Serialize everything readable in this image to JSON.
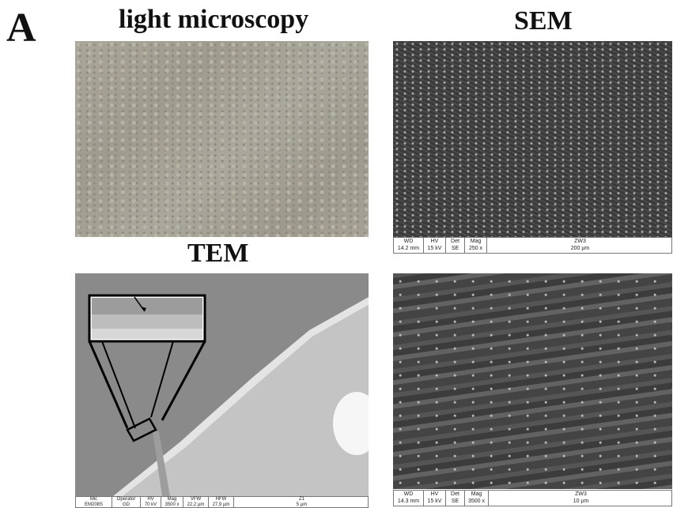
{
  "figure": {
    "panel_label": "A",
    "headings": {
      "light": "light microscopy",
      "sem": "SEM",
      "tem": "TEM"
    }
  },
  "sem_top_bar": {
    "labels": [
      "WD",
      "HV",
      "Det",
      "Mag",
      "ZW3"
    ],
    "values": [
      "14.2 mm",
      "15 kV",
      "SE",
      "250 x",
      "200 µm"
    ]
  },
  "sem_bottom_bar": {
    "labels": [
      "WD",
      "HV",
      "Det",
      "Mag",
      "ZW3"
    ],
    "values": [
      "14.3 mm",
      "15 kV",
      "SE",
      "3500 x",
      "10 µm"
    ]
  },
  "tem_bar": {
    "labels": [
      "Mic",
      "Operator",
      "HV",
      "Mag",
      "VFW",
      "HFW",
      "Z1"
    ],
    "values": [
      "EM208S",
      "GD",
      "70 kV",
      "3500 x",
      "22,2 µm",
      "27,9 µm",
      "5 µm"
    ]
  }
}
